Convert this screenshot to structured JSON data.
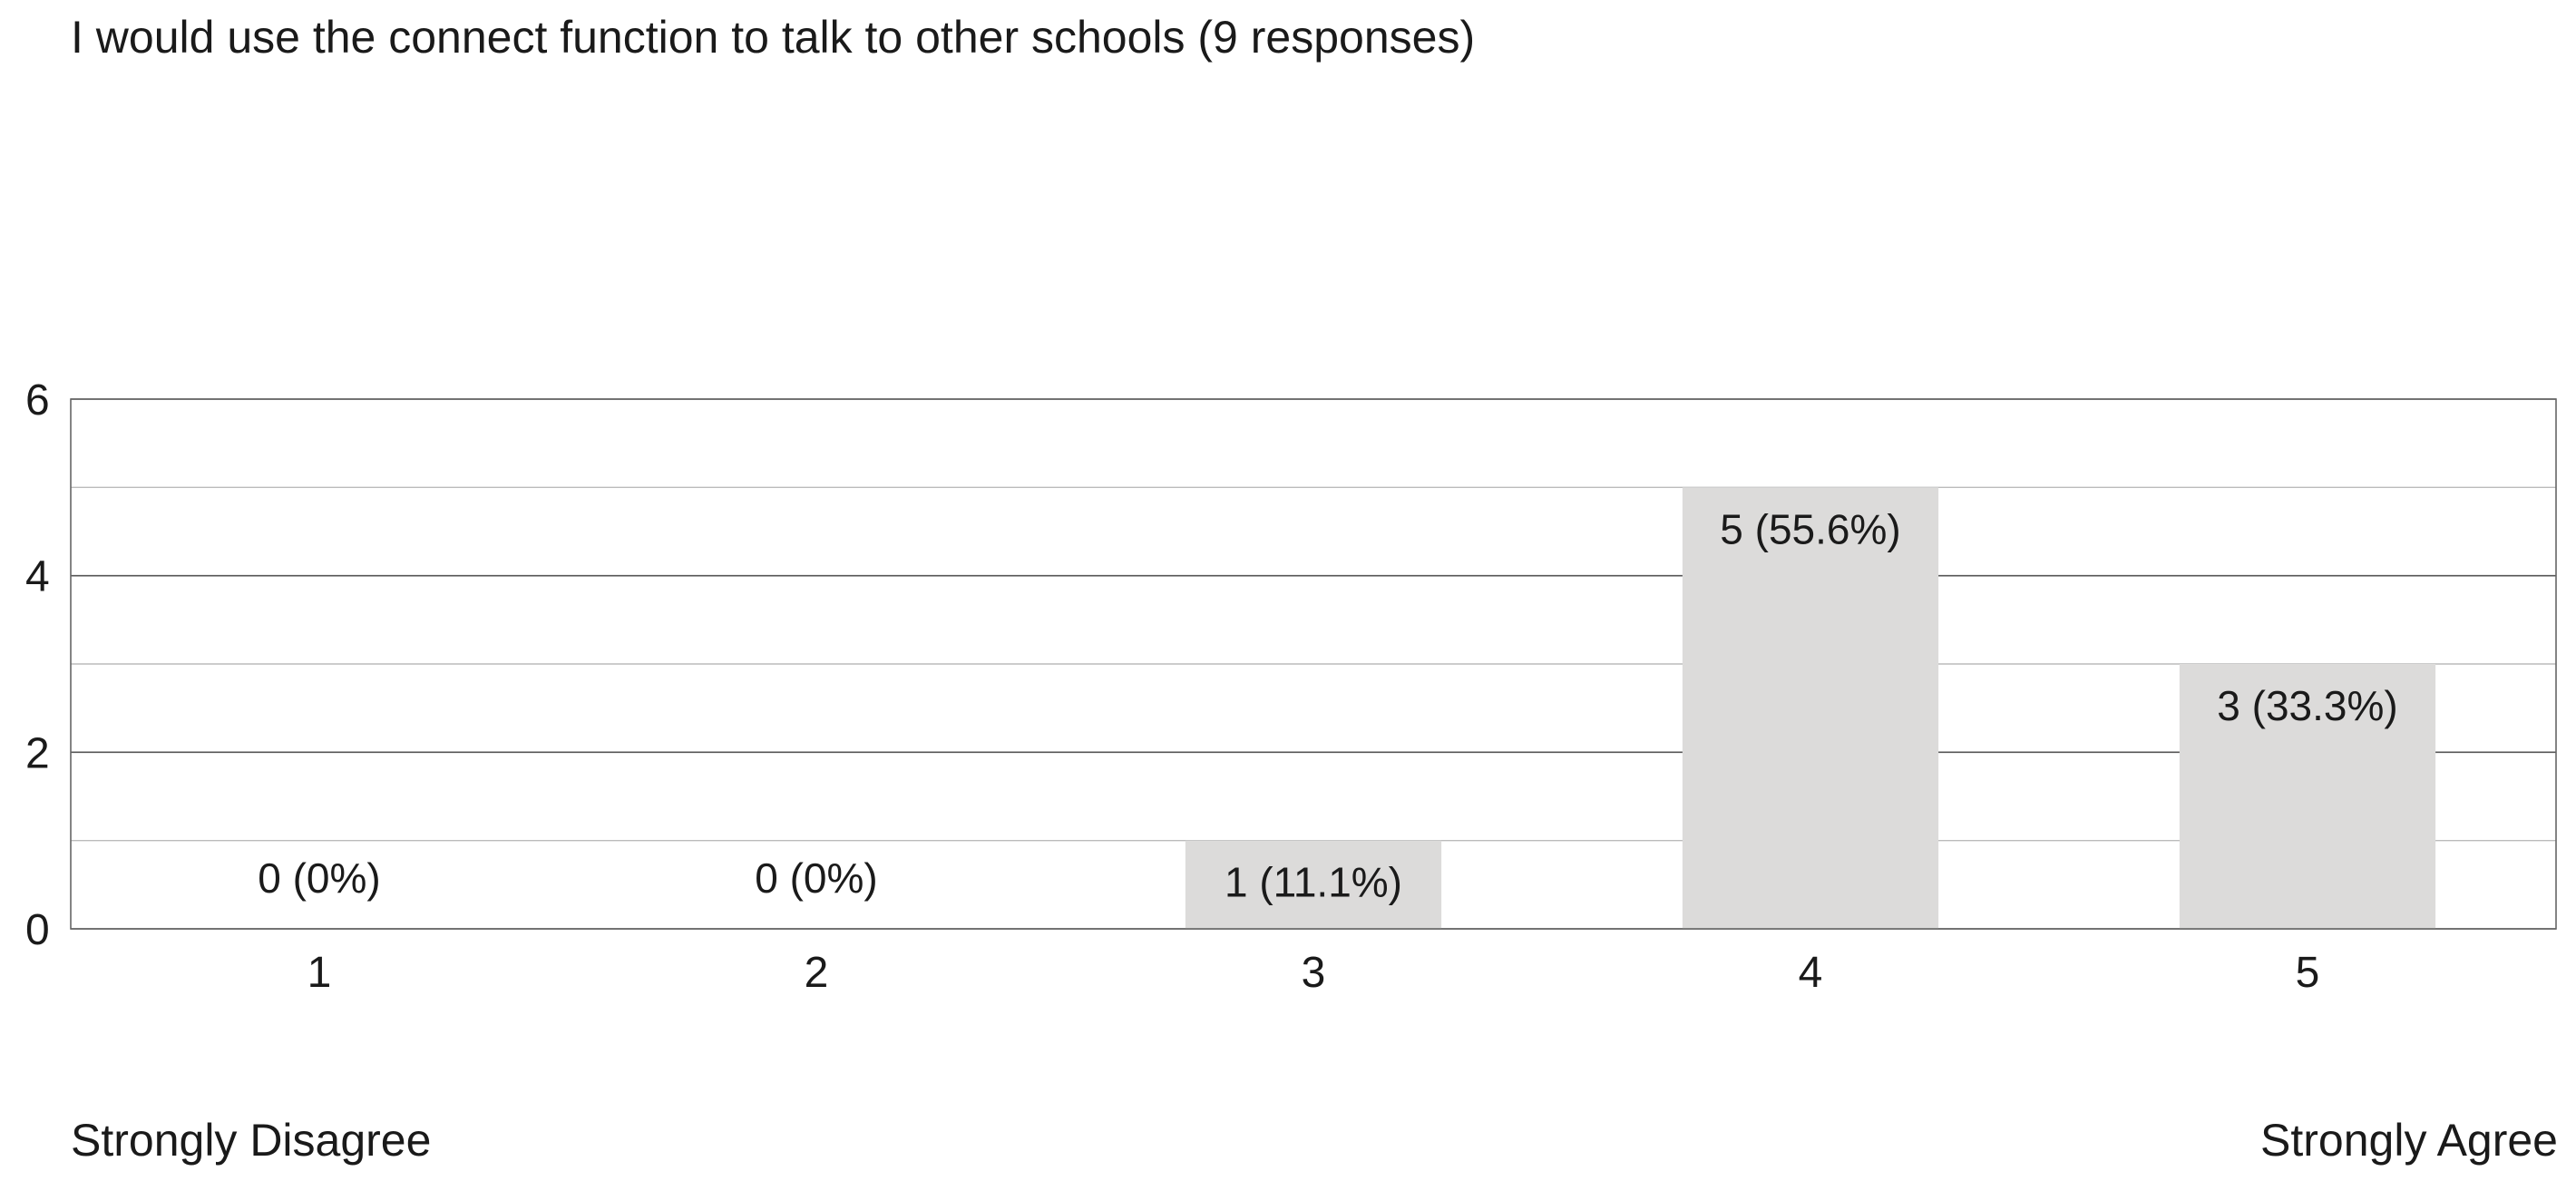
{
  "chart_data": {
    "type": "bar",
    "title": "I would use the connect function to talk to other schools (9 responses)",
    "categories": [
      "1",
      "2",
      "3",
      "4",
      "5"
    ],
    "values": [
      0,
      0,
      1,
      5,
      3
    ],
    "data_labels": [
      "0 (0%)",
      "0 (0%)",
      "1 (11.1%)",
      "5 (55.6%)",
      "3 (33.3%)"
    ],
    "ylim": [
      0,
      6
    ],
    "y_ticks": [
      0,
      2,
      4,
      6
    ],
    "grid": true,
    "legend": "none",
    "scale_labels": {
      "low": "Strongly Disagree",
      "high": "Strongly Agree"
    }
  },
  "colors": {
    "bar": "#dcdbda",
    "major_grid": "#555555",
    "minor_grid": "#bbbbbb",
    "frame": "#666666"
  }
}
